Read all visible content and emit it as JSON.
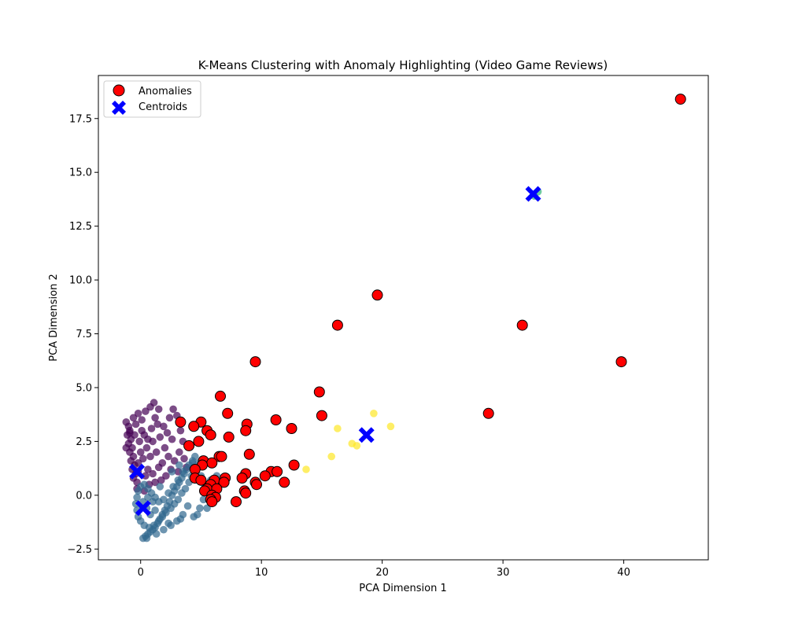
{
  "chart_data": {
    "type": "scatter",
    "title": "K-Means Clustering with Anomaly Highlighting (Video Game Reviews)",
    "xlabel": "PCA Dimension 1",
    "ylabel": "PCA Dimension 2",
    "xlim": [
      -3.5,
      47.0
    ],
    "ylim": [
      -3.0,
      19.5
    ],
    "xticks": [
      0,
      10,
      20,
      30,
      40
    ],
    "yticks": [
      -2.5,
      0.0,
      2.5,
      5.0,
      7.5,
      10.0,
      12.5,
      15.0,
      17.5
    ],
    "xtick_labels": [
      "0",
      "10",
      "20",
      "30",
      "40"
    ],
    "ytick_labels": [
      "−2.5",
      "0.0",
      "2.5",
      "5.0",
      "7.5",
      "10.0",
      "12.5",
      "15.0",
      "17.5"
    ],
    "grid": false,
    "legend_position": "top-left",
    "legend": [
      {
        "label": "Anomalies",
        "marker": "circle",
        "color": "#ff0000"
      },
      {
        "label": "Centroids",
        "marker": "X",
        "color": "#0000ff"
      }
    ],
    "colors": {
      "cluster_0": "#440154",
      "cluster_1": "#31688e",
      "cluster_2": "#35b779",
      "cluster_3": "#fde725",
      "anomaly": "#ff0000",
      "centroid": "#0000ff"
    },
    "clusters": [
      {
        "id": 0,
        "points": [
          [
            -1.2,
            3.4
          ],
          [
            -1.0,
            3.2
          ],
          [
            -0.9,
            3.0
          ],
          [
            -1.1,
            2.8
          ],
          [
            -0.8,
            2.6
          ],
          [
            -1.0,
            2.4
          ],
          [
            -0.7,
            2.2
          ],
          [
            -0.9,
            2.0
          ],
          [
            -0.6,
            1.8
          ],
          [
            -0.8,
            1.6
          ],
          [
            -0.5,
            1.4
          ],
          [
            -0.7,
            1.2
          ],
          [
            -0.4,
            1.0
          ],
          [
            -0.6,
            0.8
          ],
          [
            -0.3,
            0.6
          ],
          [
            -0.2,
            1.5
          ],
          [
            0.0,
            2.0
          ],
          [
            -0.1,
            2.5
          ],
          [
            0.1,
            3.0
          ],
          [
            -0.4,
            3.3
          ],
          [
            -0.6,
            3.6
          ],
          [
            -0.2,
            3.8
          ],
          [
            0.1,
            3.5
          ],
          [
            0.3,
            2.8
          ],
          [
            0.5,
            2.2
          ],
          [
            0.2,
            1.7
          ],
          [
            0.6,
            1.2
          ],
          [
            0.8,
            1.8
          ],
          [
            1.0,
            2.5
          ],
          [
            0.9,
            3.1
          ],
          [
            1.2,
            3.6
          ],
          [
            1.1,
            4.3
          ],
          [
            1.5,
            4.0
          ],
          [
            1.4,
            3.3
          ],
          [
            1.6,
            2.7
          ],
          [
            1.3,
            2.0
          ],
          [
            1.8,
            1.5
          ],
          [
            2.0,
            2.2
          ],
          [
            2.2,
            2.9
          ],
          [
            2.4,
            3.6
          ],
          [
            2.7,
            4.0
          ],
          [
            3.0,
            3.7
          ],
          [
            3.3,
            3.0
          ],
          [
            3.5,
            2.5
          ],
          [
            3.2,
            2.0
          ],
          [
            2.8,
            1.6
          ],
          [
            2.5,
            1.2
          ],
          [
            2.1,
            0.9
          ],
          [
            1.7,
            0.7
          ],
          [
            1.2,
            0.6
          ],
          [
            0.7,
            0.5
          ],
          [
            0.4,
            0.9
          ],
          [
            3.6,
            1.7
          ],
          [
            4.0,
            2.3
          ],
          [
            3.8,
            1.3
          ],
          [
            1.0,
            1.0
          ],
          [
            0.3,
            0.2
          ],
          [
            -0.3,
            0.3
          ],
          [
            -0.9,
            2.9
          ],
          [
            -1.2,
            2.2
          ],
          [
            -0.5,
            2.8
          ],
          [
            0.4,
            3.9
          ],
          [
            0.8,
            4.1
          ],
          [
            1.9,
            3.2
          ],
          [
            2.6,
            2.6
          ],
          [
            3.1,
            1.1
          ],
          [
            1.5,
            1.3
          ],
          [
            2.3,
            1.8
          ],
          [
            0.6,
            2.6
          ],
          [
            -0.2,
            1.1
          ]
        ]
      },
      {
        "id": 1,
        "points": [
          [
            0.2,
            -2.0
          ],
          [
            0.4,
            -1.9
          ],
          [
            0.6,
            -1.8
          ],
          [
            0.8,
            -1.7
          ],
          [
            1.0,
            -1.6
          ],
          [
            1.2,
            -1.5
          ],
          [
            1.4,
            -1.3
          ],
          [
            1.6,
            -1.1
          ],
          [
            1.8,
            -0.9
          ],
          [
            2.0,
            -0.7
          ],
          [
            2.2,
            -0.5
          ],
          [
            2.4,
            -0.3
          ],
          [
            2.6,
            0.0
          ],
          [
            2.8,
            0.2
          ],
          [
            3.0,
            0.4
          ],
          [
            3.2,
            0.6
          ],
          [
            3.4,
            0.8
          ],
          [
            3.6,
            1.0
          ],
          [
            3.8,
            1.2
          ],
          [
            4.0,
            1.4
          ],
          [
            4.3,
            1.6
          ],
          [
            4.5,
            1.8
          ],
          [
            4.8,
            1.5
          ],
          [
            4.6,
            1.2
          ],
          [
            4.2,
            0.9
          ],
          [
            4.0,
            0.6
          ],
          [
            3.7,
            0.3
          ],
          [
            3.4,
            0.1
          ],
          [
            3.1,
            -0.2
          ],
          [
            2.8,
            -0.4
          ],
          [
            2.5,
            -0.6
          ],
          [
            2.1,
            -0.8
          ],
          [
            1.8,
            -1.0
          ],
          [
            1.5,
            -1.2
          ],
          [
            1.1,
            -1.4
          ],
          [
            0.7,
            -1.5
          ],
          [
            0.3,
            -1.4
          ],
          [
            0.0,
            -1.2
          ],
          [
            -0.2,
            -1.0
          ],
          [
            -0.3,
            -0.7
          ],
          [
            -0.4,
            -0.4
          ],
          [
            -0.3,
            -0.1
          ],
          [
            -0.2,
            0.2
          ],
          [
            0.0,
            0.4
          ],
          [
            0.3,
            0.5
          ],
          [
            0.6,
            0.3
          ],
          [
            0.9,
            0.1
          ],
          [
            1.2,
            -0.1
          ],
          [
            1.5,
            -0.3
          ],
          [
            1.9,
            -0.2
          ],
          [
            2.3,
            0.1
          ],
          [
            2.7,
            0.4
          ],
          [
            3.1,
            0.7
          ],
          [
            3.5,
            1.1
          ],
          [
            0.5,
            -0.6
          ],
          [
            0.8,
            -0.9
          ],
          [
            1.2,
            -0.7
          ],
          [
            1.0,
            -0.3
          ],
          [
            0.6,
            -0.1
          ],
          [
            0.2,
            -0.3
          ],
          [
            5.0,
            0.9
          ],
          [
            5.3,
            0.5
          ],
          [
            5.6,
            0.2
          ],
          [
            5.2,
            -0.2
          ],
          [
            5.8,
            0.7
          ],
          [
            4.9,
            -0.6
          ],
          [
            4.4,
            -1.0
          ],
          [
            3.9,
            -0.5
          ],
          [
            3.5,
            -0.9
          ],
          [
            3.0,
            -1.2
          ],
          [
            2.5,
            -1.4
          ],
          [
            5.5,
            -0.6
          ],
          [
            4.7,
            -0.9
          ],
          [
            6.0,
            0.6
          ],
          [
            6.3,
            0.9
          ],
          [
            4.3,
            1.5
          ],
          [
            3.2,
            1.4
          ],
          [
            2.6,
            1.1
          ],
          [
            1.6,
            0.4
          ],
          [
            3.3,
            -1.1
          ],
          [
            2.3,
            -1.3
          ],
          [
            1.3,
            -1.8
          ],
          [
            0.5,
            -2.0
          ],
          [
            1.9,
            -1.6
          ]
        ]
      },
      {
        "id": 2,
        "points": [
          [
            32.9,
            14.1
          ],
          [
            32.6,
            13.9
          ]
        ]
      },
      {
        "id": 3,
        "points": [
          [
            13.7,
            1.2
          ],
          [
            15.8,
            1.8
          ],
          [
            16.3,
            3.1
          ],
          [
            17.5,
            2.4
          ],
          [
            17.9,
            2.3
          ],
          [
            19.3,
            3.8
          ],
          [
            20.7,
            3.2
          ]
        ]
      }
    ],
    "anomalies": [
      [
        44.7,
        18.4
      ],
      [
        19.6,
        9.3
      ],
      [
        16.3,
        7.9
      ],
      [
        31.6,
        7.9
      ],
      [
        9.5,
        6.2
      ],
      [
        39.8,
        6.2
      ],
      [
        6.6,
        4.6
      ],
      [
        14.8,
        4.8
      ],
      [
        28.8,
        3.8
      ],
      [
        3.3,
        3.4
      ],
      [
        5.0,
        3.4
      ],
      [
        7.2,
        3.8
      ],
      [
        8.8,
        3.3
      ],
      [
        11.2,
        3.5
      ],
      [
        15.0,
        3.7
      ],
      [
        4.4,
        3.2
      ],
      [
        8.7,
        3.0
      ],
      [
        12.5,
        3.1
      ],
      [
        5.5,
        3.0
      ],
      [
        5.8,
        2.8
      ],
      [
        7.3,
        2.7
      ],
      [
        4.0,
        2.3
      ],
      [
        4.8,
        2.5
      ],
      [
        6.5,
        1.8
      ],
      [
        6.7,
        1.8
      ],
      [
        9.0,
        1.9
      ],
      [
        12.7,
        1.4
      ],
      [
        5.2,
        1.6
      ],
      [
        5.9,
        1.5
      ],
      [
        5.1,
        1.4
      ],
      [
        4.5,
        1.2
      ],
      [
        10.8,
        1.1
      ],
      [
        11.3,
        1.1
      ],
      [
        10.3,
        0.9
      ],
      [
        8.7,
        1.0
      ],
      [
        8.4,
        0.8
      ],
      [
        4.5,
        0.8
      ],
      [
        7.0,
        0.8
      ],
      [
        5.0,
        0.7
      ],
      [
        6.1,
        0.7
      ],
      [
        11.9,
        0.6
      ],
      [
        9.5,
        0.6
      ],
      [
        9.6,
        0.5
      ],
      [
        6.9,
        0.6
      ],
      [
        5.8,
        0.5
      ],
      [
        5.5,
        0.3
      ],
      [
        5.3,
        0.2
      ],
      [
        6.3,
        0.3
      ],
      [
        8.6,
        0.2
      ],
      [
        8.7,
        0.1
      ],
      [
        5.9,
        0.0
      ],
      [
        6.2,
        -0.1
      ],
      [
        5.8,
        -0.2
      ],
      [
        7.9,
        -0.3
      ],
      [
        5.9,
        -0.3
      ]
    ],
    "centroids": [
      [
        -0.3,
        1.1
      ],
      [
        0.2,
        -0.6
      ],
      [
        32.5,
        14.0
      ],
      [
        18.7,
        2.8
      ]
    ]
  }
}
